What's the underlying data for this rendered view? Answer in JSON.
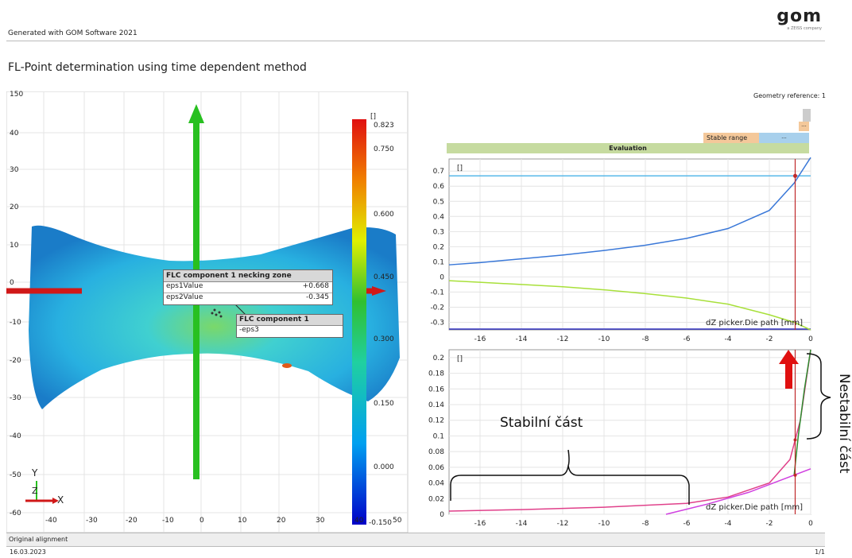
{
  "header": {
    "generated": "Generated with GOM Software 2021",
    "logo": "gom",
    "logo_sub": "a ZEISS company",
    "title": "FL-Point determination using time dependent method",
    "geometry_reference": "Geometry reference: 1"
  },
  "map_view": {
    "y_ticks": [
      "150",
      "40",
      "30",
      "20",
      "10",
      "0",
      "-10",
      "-20",
      "-30",
      "-40",
      "-50",
      "-60"
    ],
    "x_ticks": [
      "-40",
      "-30",
      "-20",
      "-10",
      "0",
      "10",
      "20",
      "30",
      "40"
    ],
    "axis_y": "Y",
    "axis_x": "X",
    "axis_z": "Z",
    "colorbar": {
      "unit": "[]",
      "labels": [
        "0.823",
        "0.750",
        "0.600",
        "0.450",
        "0.300",
        "0.150",
        "0.000",
        "-0.150"
      ],
      "overlap_label": "50"
    },
    "tooltip1": {
      "title": "FLC component 1 necking zone",
      "rows": [
        {
          "name": "eps1Value",
          "value": "+0.668"
        },
        {
          "name": "eps2Value",
          "value": "-0.345"
        }
      ]
    },
    "tooltip2": {
      "title": "FLC component 1",
      "rows": [
        {
          "name": "-eps3",
          "value": ""
        }
      ]
    }
  },
  "range_bar": {
    "stable_range": "Stable range",
    "dots": "...",
    "evaluation": "Evaluation"
  },
  "footer": {
    "alignment": "Original alignment",
    "date": "16.03.2023",
    "page": "1/1"
  },
  "annotations": {
    "stable": "Stabilní část",
    "unstable": "Nestabilní část"
  },
  "colors": {
    "blue_curve": "#3a78d8",
    "green_curve": "#a8e03a",
    "pink_curve": "#e0408a",
    "magenta_curve": "#d040e0",
    "red_marker": "#c0282a",
    "evaluation_bar": "#c6dba0",
    "stable_range_bar": "#f4c89a",
    "blue_range_bar": "#a8d0ec"
  },
  "chart_data": [
    {
      "type": "line",
      "unit": "[]",
      "xlabel": "dZ picker.Die path [mm]",
      "xlim": [
        -17.5,
        0
      ],
      "ylim": [
        -0.35,
        0.78
      ],
      "y_ticks": [
        0.7,
        0.6,
        0.5,
        0.4,
        0.3,
        0.2,
        0.1,
        0,
        -0.1,
        -0.2,
        -0.3
      ],
      "x_ticks": [
        -16,
        -14,
        -12,
        -10,
        -8,
        -6,
        -4,
        -2,
        0
      ],
      "series": [
        {
          "x": [
            -17.5,
            -16,
            -14,
            -12,
            -10,
            -8,
            -6,
            -4,
            -2,
            -0.8,
            0
          ],
          "y": [
            0.08,
            0.095,
            0.12,
            0.145,
            0.175,
            0.21,
            0.255,
            0.32,
            0.44,
            0.62,
            0.79
          ]
        },
        {
          "x": [
            -17.5,
            -16,
            -14,
            -12,
            -10,
            -8,
            -6,
            -4,
            -2,
            -0.8,
            0
          ],
          "y": [
            -0.025,
            -0.035,
            -0.05,
            -0.065,
            -0.085,
            -0.11,
            -0.14,
            -0.18,
            -0.25,
            -0.3,
            -0.35
          ]
        }
      ],
      "hlines": [
        0.668,
        -0.345
      ],
      "vline": -0.75
    },
    {
      "type": "line",
      "unit": "[]",
      "xlabel": "dZ picker.Die path [mm]",
      "xlim": [
        -17.5,
        0
      ],
      "ylim": [
        0,
        0.21
      ],
      "y_ticks": [
        0.2,
        0.18,
        0.16,
        0.14,
        0.12,
        0.1,
        0.08,
        0.06,
        0.04,
        0.02,
        0
      ],
      "x_ticks": [
        -16,
        -14,
        -12,
        -10,
        -8,
        -6,
        -4,
        -2,
        0
      ],
      "series": [
        {
          "x": [
            -17.5,
            -14,
            -10,
            -6,
            -4,
            -2,
            -1,
            -0.5,
            0
          ],
          "y": [
            0.004,
            0.006,
            0.009,
            0.014,
            0.022,
            0.04,
            0.07,
            0.12,
            0.21
          ]
        },
        {
          "x": [
            -7,
            -5,
            -3,
            -1,
            0
          ],
          "y": [
            0,
            0.013,
            0.028,
            0.048,
            0.058
          ]
        },
        {
          "x": [
            -0.8,
            -0.6,
            -0.3,
            0
          ],
          "y": [
            0.05,
            0.1,
            0.16,
            0.21
          ]
        }
      ],
      "vline": -0.75
    }
  ]
}
